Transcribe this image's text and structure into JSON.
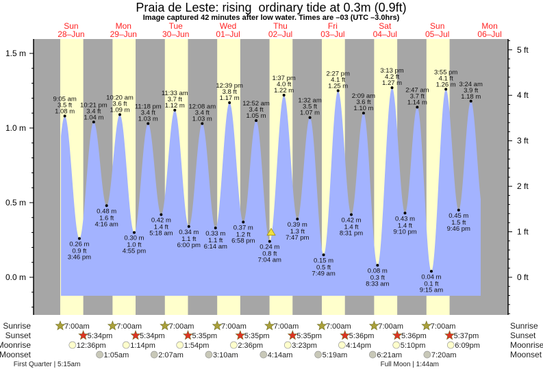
{
  "chart_data": {
    "type": "area",
    "title": "Praia de Leste: rising  ordinary tide at 0.3m (0.9ft)",
    "subtitle": "Image captured 42 minutes after low water. Times are –03 (UTC –3.0hrs)",
    "y_left": {
      "unit": "m",
      "ticks": [
        "1.5 m",
        "1.0 m",
        "0.5 m",
        "0.0 m"
      ],
      "tick_values": [
        1.5,
        1.0,
        0.5,
        0.0
      ],
      "range": [
        -0.25,
        1.6
      ]
    },
    "y_right": {
      "unit": "ft",
      "ticks": [
        "5 ft",
        "4 ft",
        "3 ft",
        "2 ft",
        "1 ft",
        "0 ft"
      ],
      "tick_values": [
        5,
        4,
        3,
        2,
        1,
        0
      ]
    },
    "days": [
      {
        "weekday": "Sun",
        "date": "28–Jun"
      },
      {
        "weekday": "Mon",
        "date": "29–Jun"
      },
      {
        "weekday": "Tue",
        "date": "30–Jun"
      },
      {
        "weekday": "Wed",
        "date": "01–Jul"
      },
      {
        "weekday": "Thu",
        "date": "02–Jul"
      },
      {
        "weekday": "Fri",
        "date": "03–Jul"
      },
      {
        "weekday": "Sat",
        "date": "04–Jul"
      },
      {
        "weekday": "Sun",
        "date": "05–Jul"
      },
      {
        "weekday": "Mon",
        "date": "06–Jul"
      }
    ],
    "tides": [
      {
        "day": 0,
        "time": "9:05 am",
        "m": "1.08 m",
        "ft": "3.5 ft",
        "value": 1.08,
        "type": "high"
      },
      {
        "day": 0,
        "time": "3:46 pm",
        "m": "0.26 m",
        "ft": "0.9 ft",
        "value": 0.26,
        "type": "low"
      },
      {
        "day": 0,
        "time": "10:21 pm",
        "m": "1.04 m",
        "ft": "3.4 ft",
        "value": 1.04,
        "type": "high"
      },
      {
        "day": 1,
        "time": "4:16 am",
        "m": "0.48 m",
        "ft": "1.6 ft",
        "value": 0.48,
        "type": "low"
      },
      {
        "day": 1,
        "time": "10:20 am",
        "m": "1.09 m",
        "ft": "3.6 ft",
        "value": 1.09,
        "type": "high"
      },
      {
        "day": 1,
        "time": "4:55 pm",
        "m": "0.30 m",
        "ft": "1.0 ft",
        "value": 0.3,
        "type": "low"
      },
      {
        "day": 1,
        "time": "11:18 pm",
        "m": "1.03 m",
        "ft": "3.4 ft",
        "value": 1.03,
        "type": "high"
      },
      {
        "day": 2,
        "time": "5:18 am",
        "m": "0.42 m",
        "ft": "1.4 ft",
        "value": 0.42,
        "type": "low"
      },
      {
        "day": 2,
        "time": "11:33 am",
        "m": "1.12 m",
        "ft": "3.7 ft",
        "value": 1.12,
        "type": "high"
      },
      {
        "day": 2,
        "time": "6:00 pm",
        "m": "0.34 m",
        "ft": "1.1 ft",
        "value": 0.34,
        "type": "low"
      },
      {
        "day": 3,
        "time": "12:08 am",
        "m": "1.03 m",
        "ft": "3.4 ft",
        "value": 1.03,
        "type": "high"
      },
      {
        "day": 3,
        "time": "6:14 am",
        "m": "0.33 m",
        "ft": "1.1 ft",
        "value": 0.33,
        "type": "low"
      },
      {
        "day": 3,
        "time": "12:39 pm",
        "m": "1.17 m",
        "ft": "3.8 ft",
        "value": 1.17,
        "type": "high"
      },
      {
        "day": 3,
        "time": "6:58 pm",
        "m": "0.37 m",
        "ft": "1.2 ft",
        "value": 0.37,
        "type": "low"
      },
      {
        "day": 4,
        "time": "12:52 am",
        "m": "1.05 m",
        "ft": "3.4 ft",
        "value": 1.05,
        "type": "high"
      },
      {
        "day": 4,
        "time": "7:04 am",
        "m": "0.24 m",
        "ft": "0.8 ft",
        "value": 0.24,
        "type": "low"
      },
      {
        "day": 4,
        "time": "1:37 pm",
        "m": "1.22 m",
        "ft": "4.0 ft",
        "value": 1.22,
        "type": "high"
      },
      {
        "day": 4,
        "time": "7:47 pm",
        "m": "0.39 m",
        "ft": "1.3 ft",
        "value": 0.39,
        "type": "low"
      },
      {
        "day": 5,
        "time": "1:32 am",
        "m": "1.07 m",
        "ft": "3.5 ft",
        "value": 1.07,
        "type": "high"
      },
      {
        "day": 5,
        "time": "7:49 am",
        "m": "0.15 m",
        "ft": "0.5 ft",
        "value": 0.15,
        "type": "low"
      },
      {
        "day": 5,
        "time": "2:27 pm",
        "m": "1.25 m",
        "ft": "4.1 ft",
        "value": 1.25,
        "type": "high"
      },
      {
        "day": 5,
        "time": "8:31 pm",
        "m": "0.42 m",
        "ft": "1.4 ft",
        "value": 0.42,
        "type": "low"
      },
      {
        "day": 6,
        "time": "2:09 am",
        "m": "1.10 m",
        "ft": "3.6 ft",
        "value": 1.1,
        "type": "high"
      },
      {
        "day": 6,
        "time": "8:33 am",
        "m": "0.08 m",
        "ft": "0.3 ft",
        "value": 0.08,
        "type": "low"
      },
      {
        "day": 6,
        "time": "3:13 pm",
        "m": "1.27 m",
        "ft": "4.2 ft",
        "value": 1.27,
        "type": "high"
      },
      {
        "day": 6,
        "time": "9:10 pm",
        "m": "0.43 m",
        "ft": "1.4 ft",
        "value": 0.43,
        "type": "low"
      },
      {
        "day": 7,
        "time": "2:47 am",
        "m": "1.14 m",
        "ft": "3.7 ft",
        "value": 1.14,
        "type": "high"
      },
      {
        "day": 7,
        "time": "9:15 am",
        "m": "0.04 m",
        "ft": "0.1 ft",
        "value": 0.04,
        "type": "low"
      },
      {
        "day": 7,
        "time": "3:55 pm",
        "m": "1.26 m",
        "ft": "4.1 ft",
        "value": 1.26,
        "type": "high"
      },
      {
        "day": 7,
        "time": "9:46 pm",
        "m": "0.45 m",
        "ft": "1.5 ft",
        "value": 0.45,
        "type": "low"
      },
      {
        "day": 8,
        "time": "3:24 am",
        "m": "1.18 m",
        "ft": "3.9 ft",
        "value": 1.18,
        "type": "high"
      }
    ],
    "current": {
      "day": 4,
      "time": "7:46 am",
      "value": 0.3
    },
    "rows": {
      "sunrise": "Sunrise",
      "sunset": "Sunset",
      "moonrise": "Moonrise",
      "moonset": "Moonset"
    },
    "sunrise": [
      {
        "day": 0,
        "time": "7:00am"
      },
      {
        "day": 1,
        "time": "7:00am"
      },
      {
        "day": 2,
        "time": "7:00am"
      },
      {
        "day": 3,
        "time": "7:00am"
      },
      {
        "day": 4,
        "time": "7:00am"
      },
      {
        "day": 5,
        "time": "7:00am"
      },
      {
        "day": 6,
        "time": "7:00am"
      },
      {
        "day": 7,
        "time": "7:00am"
      }
    ],
    "sunset": [
      {
        "day": 0,
        "time": "5:34pm"
      },
      {
        "day": 1,
        "time": "5:34pm"
      },
      {
        "day": 2,
        "time": "5:35pm"
      },
      {
        "day": 3,
        "time": "5:35pm"
      },
      {
        "day": 4,
        "time": "5:35pm"
      },
      {
        "day": 5,
        "time": "5:36pm"
      },
      {
        "day": 6,
        "time": "5:36pm"
      },
      {
        "day": 7,
        "time": "5:37pm"
      }
    ],
    "moonrise": [
      {
        "day": 0,
        "time": "12:36pm"
      },
      {
        "day": 1,
        "time": "1:14pm"
      },
      {
        "day": 2,
        "time": "1:54pm"
      },
      {
        "day": 3,
        "time": "2:36pm"
      },
      {
        "day": 4,
        "time": "3:23pm"
      },
      {
        "day": 5,
        "time": "4:14pm"
      },
      {
        "day": 6,
        "time": "5:10pm"
      },
      {
        "day": 7,
        "time": "6:09pm"
      }
    ],
    "moonset": [
      {
        "day": 1,
        "time": "1:05am"
      },
      {
        "day": 2,
        "time": "2:07am"
      },
      {
        "day": 3,
        "time": "3:10am"
      },
      {
        "day": 4,
        "time": "4:14am"
      },
      {
        "day": 5,
        "time": "5:19am"
      },
      {
        "day": 6,
        "time": "6:21am"
      },
      {
        "day": 7,
        "time": "7:20am"
      }
    ],
    "moon_phases": [
      {
        "day": 0,
        "time": "5:15am",
        "label": "First Quarter",
        "text": "First Quarter | 5:15am"
      },
      {
        "day": 7,
        "time": "1:44am",
        "label": "Full Moon",
        "text": "Full Moon | 1:44am"
      }
    ],
    "colors": {
      "night": "#a6a6a6",
      "day": "#ffffcc",
      "water": "#a3b3ff",
      "day_label": "#ff2222",
      "sunset_star": "#dd3322",
      "sunrise_star": "#aaa03a",
      "moonrise": "#ffffcc",
      "moonset": "#c8c8b8",
      "current_marker": "#f0e040"
    }
  }
}
